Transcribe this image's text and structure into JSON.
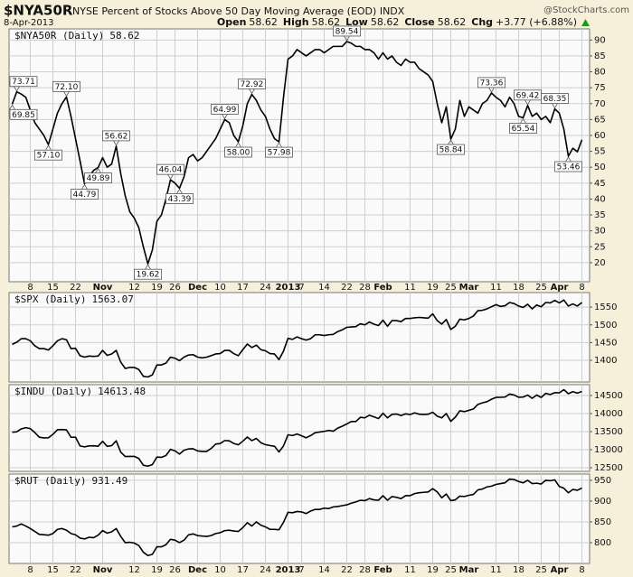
{
  "header": {
    "symbol": "$NYA50R",
    "description": "NYSE Percent of Stocks Above 50 Day Moving Average (EOD) INDX",
    "source": "@StockCharts.com",
    "date": "8-Apr-2013",
    "quote": [
      {
        "label": "Open",
        "value": 58.62
      },
      {
        "label": "High",
        "value": 58.62
      },
      {
        "label": "Low",
        "value": 58.62
      },
      {
        "label": "Close",
        "value": 58.62
      },
      {
        "label": "Chg",
        "value": "+3.77 (+6.88%)"
      }
    ]
  },
  "chart_data": [
    {
      "type": "line",
      "categories": [
        null,
        null,
        null,
        null,
        "8",
        null,
        null,
        null,
        null,
        "15",
        null,
        null,
        null,
        null,
        "22",
        null,
        null,
        null,
        null,
        null,
        "Nov",
        null,
        null,
        null,
        null,
        null,
        null,
        "12",
        null,
        null,
        null,
        null,
        "19",
        null,
        null,
        null,
        "26",
        null,
        null,
        null,
        null,
        "Dec",
        null,
        null,
        null,
        null,
        "10",
        null,
        null,
        null,
        null,
        "17",
        null,
        null,
        null,
        null,
        "24",
        null,
        null,
        null,
        null,
        "2013",
        null,
        null,
        "7",
        null,
        null,
        null,
        null,
        "14",
        null,
        null,
        null,
        null,
        "22",
        null,
        null,
        null,
        "28",
        null,
        null,
        null,
        "Feb",
        null,
        null,
        null,
        null,
        null,
        "11",
        null,
        null,
        null,
        null,
        "19",
        null,
        null,
        null,
        "25",
        null,
        null,
        null,
        "Mar",
        null,
        null,
        null,
        null,
        null,
        "11",
        null,
        null,
        null,
        null,
        "18",
        null,
        null,
        null,
        null,
        "25",
        null,
        null,
        null,
        "Apr",
        null,
        null,
        null,
        null,
        "8"
      ],
      "series": [
        {
          "name": "$NYA50R (Daily)",
          "color": "#000000",
          "values": [
            69.85,
            73.71,
            73,
            72,
            68,
            64,
            62,
            60,
            57.1,
            62,
            67,
            70,
            72.1,
            66,
            59,
            52,
            44.79,
            47,
            49,
            49.89,
            53,
            50,
            51,
            56.62,
            48,
            41,
            36,
            34,
            31,
            25,
            19.62,
            24,
            33,
            35,
            40,
            46.04,
            45,
            43.39,
            47,
            53,
            54,
            52,
            53,
            55,
            57,
            59,
            62,
            64.99,
            64,
            60,
            58,
            63,
            70,
            72.92,
            71,
            68,
            66,
            62,
            59,
            57.98,
            72,
            84,
            85,
            87,
            86,
            85,
            86,
            87,
            87,
            86,
            87,
            88,
            88,
            88,
            89.54,
            89,
            88,
            88,
            87,
            87,
            86,
            84,
            86,
            84,
            85,
            83,
            82,
            84,
            83,
            83,
            81,
            80,
            79,
            77,
            70,
            64,
            69,
            58.84,
            62,
            71,
            66,
            69,
            68,
            67,
            70,
            71,
            73.36,
            72,
            71,
            69,
            72,
            70,
            66,
            65.54,
            69.42,
            66,
            67,
            65,
            66,
            64,
            68.35,
            67,
            62,
            53.46,
            56,
            54.85,
            58.62
          ],
          "value_labels": [
            "69.85",
            "73.71",
            null,
            null,
            null,
            null,
            null,
            null,
            "57.10",
            null,
            null,
            null,
            "72.10",
            null,
            null,
            null,
            "44.79",
            null,
            null,
            "49.89",
            null,
            null,
            null,
            "56.62",
            null,
            null,
            null,
            null,
            null,
            null,
            "19.62",
            null,
            null,
            null,
            null,
            "46.04",
            null,
            "43.39",
            null,
            null,
            null,
            null,
            null,
            null,
            null,
            null,
            null,
            "64.99",
            null,
            null,
            "58.00",
            null,
            null,
            "72.92",
            null,
            null,
            null,
            null,
            null,
            "57.98",
            null,
            null,
            null,
            null,
            null,
            null,
            null,
            null,
            null,
            null,
            null,
            null,
            null,
            null,
            "89.54",
            null,
            null,
            null,
            null,
            null,
            null,
            null,
            null,
            null,
            null,
            null,
            null,
            null,
            null,
            null,
            null,
            null,
            null,
            null,
            null,
            null,
            null,
            "58.84",
            null,
            null,
            null,
            null,
            null,
            null,
            null,
            null,
            "73.36",
            null,
            null,
            null,
            null,
            null,
            null,
            "65.54",
            "69.42",
            null,
            null,
            null,
            null,
            null,
            "68.35",
            null,
            null,
            "53.46",
            null,
            null,
            null
          ]
        }
      ],
      "ylim": [
        14,
        93.5
      ],
      "yticks": [
        20,
        25,
        30,
        35,
        40,
        45,
        50,
        55,
        60,
        65,
        70,
        75,
        80,
        85,
        90
      ],
      "grid": true
    },
    {
      "type": "line",
      "series": [
        {
          "name": "$SPX (Daily)",
          "color": "#000000",
          "values": [
            1445,
            1451,
            1461,
            1461,
            1455,
            1441,
            1433,
            1433,
            1429,
            1441,
            1455,
            1461,
            1458,
            1433,
            1434,
            1413,
            1409,
            1412,
            1411,
            1412,
            1428,
            1414,
            1418,
            1428,
            1395,
            1377,
            1380,
            1380,
            1374,
            1355,
            1353,
            1359,
            1387,
            1387,
            1392,
            1409,
            1406,
            1399,
            1409,
            1415,
            1416,
            1409,
            1407,
            1409,
            1413,
            1418,
            1419,
            1428,
            1428,
            1419,
            1413,
            1430,
            1446,
            1436,
            1443,
            1430,
            1427,
            1419,
            1418,
            1402,
            1426,
            1462,
            1459,
            1466,
            1461,
            1457,
            1461,
            1472,
            1472,
            1470,
            1472,
            1473,
            1481,
            1486,
            1493,
            1494,
            1495,
            1503,
            1500,
            1508,
            1502,
            1498,
            1513,
            1496,
            1512,
            1512,
            1509,
            1518,
            1518,
            1520,
            1521,
            1520,
            1519,
            1531,
            1512,
            1502,
            1515,
            1487,
            1496,
            1516,
            1514,
            1518,
            1525,
            1540,
            1541,
            1545,
            1551,
            1557,
            1552,
            1554,
            1563,
            1560,
            1553,
            1549,
            1558,
            1545,
            1556,
            1551,
            1563,
            1562,
            1569,
            1562,
            1570,
            1553,
            1559,
            1553,
            1563.07
          ]
        }
      ],
      "ylim": [
        1339,
        1591
      ],
      "yticks": [
        1400,
        1450,
        1500,
        1550
      ],
      "grid": true
    },
    {
      "type": "line",
      "series": [
        {
          "name": "$INDU (Daily)",
          "color": "#000000",
          "values": [
            13482,
            13495,
            13576,
            13610,
            13583,
            13474,
            13345,
            13326,
            13329,
            13424,
            13551,
            13558,
            13548,
            13344,
            13346,
            13103,
            13078,
            13104,
            13107,
            13096,
            13232,
            13093,
            13112,
            13246,
            12932,
            12811,
            12815,
            12815,
            12756,
            12571,
            12543,
            12588,
            12796,
            12788,
            12837,
            13010,
            12968,
            12878,
            12985,
            13022,
            13026,
            12966,
            12952,
            12951,
            13034,
            13155,
            13170,
            13253,
            13246,
            13171,
            13135,
            13236,
            13351,
            13251,
            13312,
            13191,
            13139,
            13115,
            13096,
            12938,
            13104,
            13412,
            13391,
            13435,
            13385,
            13329,
            13390,
            13471,
            13488,
            13507,
            13534,
            13511,
            13597,
            13650,
            13712,
            13780,
            13780,
            13896,
            13882,
            13954,
            13910,
            13861,
            14010,
            13880,
            13979,
            13987,
            13944,
            13993,
            13972,
            14019,
            13983,
            13973,
            13982,
            14036,
            13928,
            13881,
            14001,
            13784,
            13900,
            14076,
            14054,
            14089,
            14128,
            14254,
            14296,
            14330,
            14397,
            14448,
            14450,
            14456,
            14539,
            14514,
            14452,
            14456,
            14511,
            14421,
            14512,
            14447,
            14559,
            14527,
            14579,
            14572,
            14662,
            14550,
            14606,
            14565,
            14613.48
          ]
        }
      ],
      "ylim": [
        12400,
        14800
      ],
      "yticks": [
        12500,
        13000,
        13500,
        14000,
        14500
      ],
      "grid": true
    },
    {
      "type": "line",
      "categories": [
        null,
        null,
        null,
        null,
        "8",
        null,
        null,
        null,
        null,
        "15",
        null,
        null,
        null,
        null,
        "22",
        null,
        null,
        null,
        null,
        null,
        "Nov",
        null,
        null,
        null,
        null,
        null,
        null,
        "12",
        null,
        null,
        null,
        null,
        "19",
        null,
        null,
        null,
        "26",
        null,
        null,
        null,
        null,
        "Dec",
        null,
        null,
        null,
        null,
        "10",
        null,
        null,
        null,
        null,
        "17",
        null,
        null,
        null,
        null,
        "24",
        null,
        null,
        null,
        null,
        "2013",
        null,
        null,
        "7",
        null,
        null,
        null,
        null,
        "14",
        null,
        null,
        null,
        null,
        "22",
        null,
        null,
        null,
        "28",
        null,
        null,
        null,
        "Feb",
        null,
        null,
        null,
        null,
        null,
        "11",
        null,
        null,
        null,
        null,
        "19",
        null,
        null,
        null,
        "25",
        null,
        null,
        null,
        "Mar",
        null,
        null,
        null,
        null,
        null,
        "11",
        null,
        null,
        null,
        null,
        "18",
        null,
        null,
        null,
        null,
        "25",
        null,
        null,
        null,
        "Apr",
        null,
        null,
        null,
        null,
        "8"
      ],
      "series": [
        {
          "name": "$RUT (Daily)",
          "color": "#000000",
          "values": [
            838,
            840,
            845,
            840,
            834,
            827,
            820,
            819,
            818,
            822,
            832,
            834,
            830,
            822,
            819,
            811,
            809,
            813,
            812,
            818,
            829,
            823,
            826,
            834,
            815,
            800,
            801,
            799,
            793,
            777,
            769,
            772,
            790,
            790,
            795,
            808,
            806,
            800,
            806,
            819,
            821,
            817,
            816,
            815,
            817,
            822,
            824,
            829,
            830,
            828,
            827,
            836,
            848,
            840,
            850,
            842,
            838,
            832,
            832,
            831,
            849,
            873,
            872,
            875,
            874,
            870,
            876,
            880,
            880,
            883,
            882,
            886,
            887,
            889,
            891,
            895,
            898,
            902,
            901,
            906,
            903,
            902,
            913,
            902,
            911,
            909,
            906,
            913,
            913,
            918,
            920,
            921,
            922,
            930,
            922,
            908,
            917,
            901,
            903,
            912,
            911,
            914,
            916,
            927,
            929,
            934,
            936,
            940,
            942,
            944,
            953,
            952,
            947,
            944,
            950,
            942,
            943,
            941,
            950,
            949,
            951,
            935,
            931,
            920,
            928,
            926,
            931.49
          ]
        }
      ],
      "ylim": [
        750,
        965
      ],
      "yticks": [
        800,
        850,
        900,
        950
      ],
      "grid": true
    }
  ]
}
